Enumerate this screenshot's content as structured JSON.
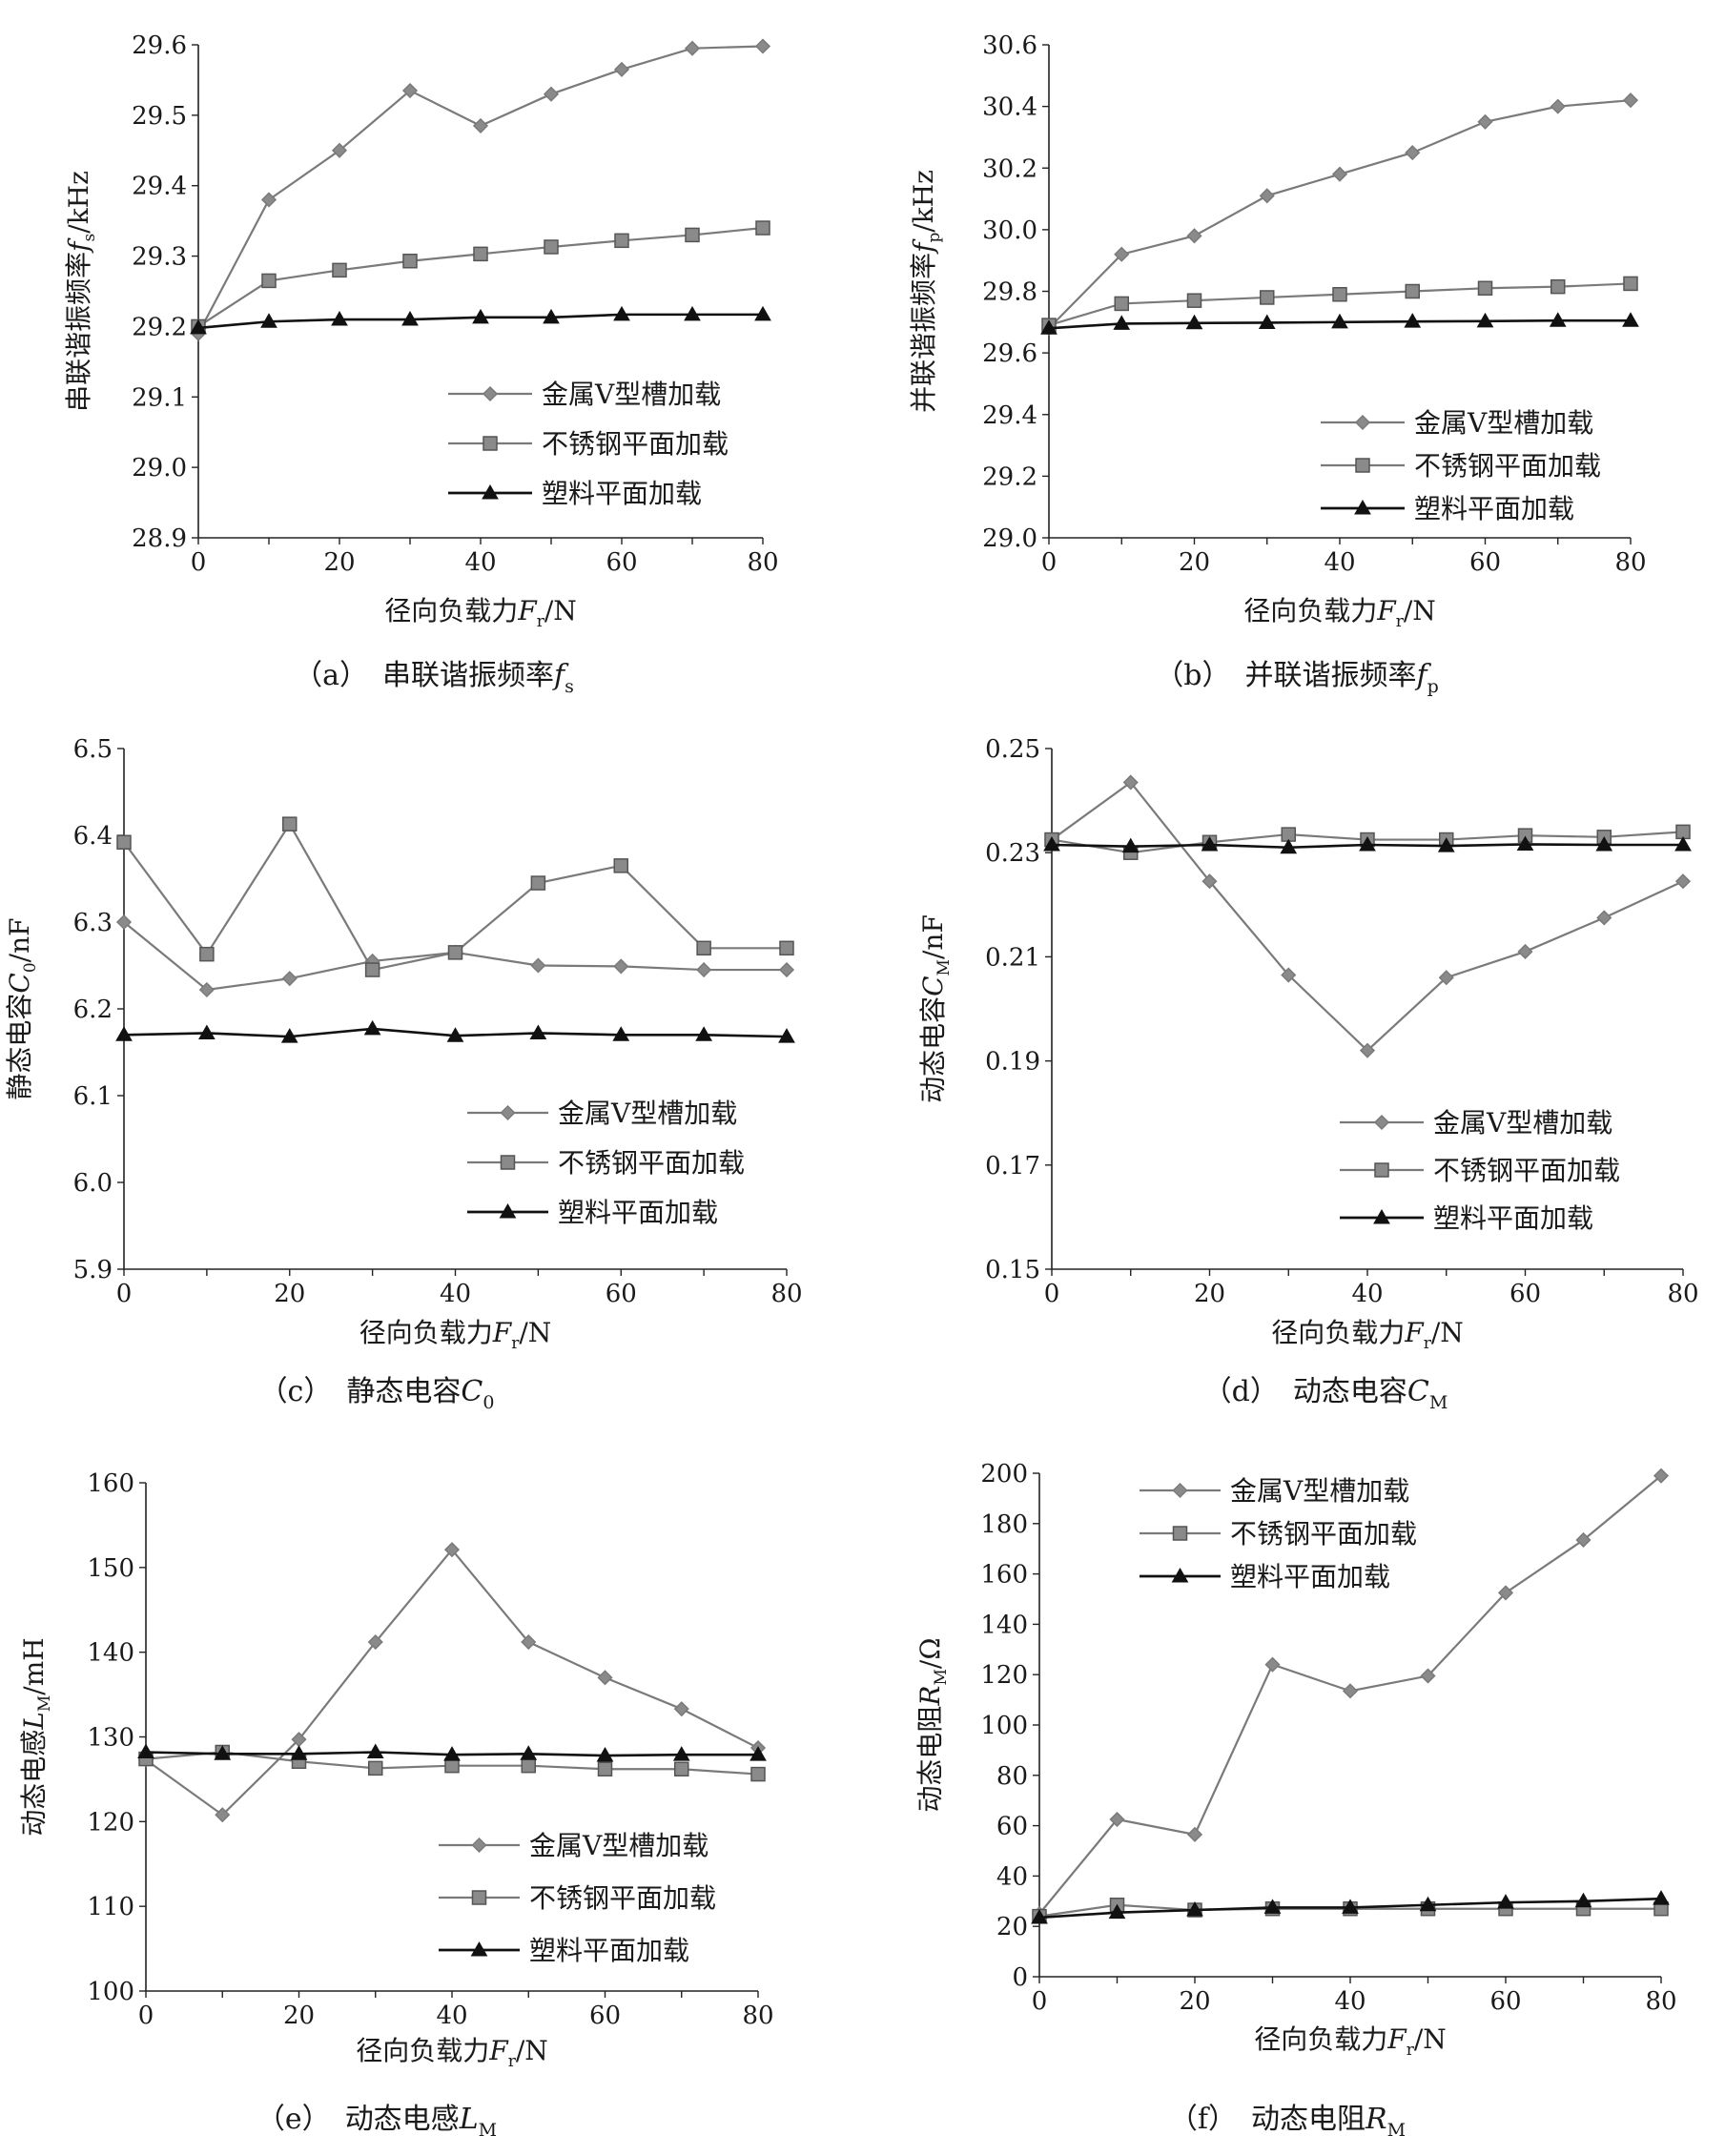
{
  "chart_data": [
    {
      "type": "line",
      "caption": {
        "prefix": "（a）",
        "text": "串联谐振频率",
        "sym": "f",
        "sub": "s"
      },
      "ylabel": {
        "pre": "串联谐振频率",
        "sym": "f",
        "sub": "s",
        "post": "/kHz"
      },
      "xlabel": {
        "pre": "径向负载力",
        "sym": "F",
        "sub": "r",
        "post": "/N"
      },
      "xlim": [
        0,
        80
      ],
      "ylim": [
        28.9,
        29.6
      ],
      "xticks": [
        0,
        20,
        40,
        60,
        80
      ],
      "yticks": [
        "28.9",
        "29.0",
        "29.1",
        "29.2",
        "29.3",
        "29.4",
        "29.5",
        "29.6"
      ],
      "legend_position": "lower-right",
      "series": [
        {
          "name": "金属V型槽加载",
          "marker": "diamond",
          "x": [
            0,
            10,
            20,
            30,
            40,
            50,
            60,
            70,
            80
          ],
          "y": [
            29.19,
            29.38,
            29.45,
            29.535,
            29.485,
            29.53,
            29.565,
            29.595,
            29.598
          ]
        },
        {
          "name": "不锈钢平面加载",
          "marker": "square",
          "x": [
            0,
            10,
            20,
            30,
            40,
            50,
            60,
            70,
            80
          ],
          "y": [
            29.2,
            29.265,
            29.28,
            29.293,
            29.303,
            29.313,
            29.322,
            29.33,
            29.34
          ]
        },
        {
          "name": "塑料平面加载",
          "marker": "triangle",
          "x": [
            0,
            10,
            20,
            30,
            40,
            50,
            60,
            70,
            80
          ],
          "y": [
            29.198,
            29.207,
            29.21,
            29.21,
            29.213,
            29.213,
            29.217,
            29.217,
            29.217
          ]
        }
      ]
    },
    {
      "type": "line",
      "caption": {
        "prefix": "（b）",
        "text": "并联谐振频率",
        "sym": "f",
        "sub": "p"
      },
      "ylabel": {
        "pre": "并联谐振频率",
        "sym": "f",
        "sub": "p",
        "post": "/kHz"
      },
      "xlabel": {
        "pre": "径向负载力",
        "sym": "F",
        "sub": "r",
        "post": "/N"
      },
      "xlim": [
        0,
        80
      ],
      "ylim": [
        29.0,
        30.6
      ],
      "xticks": [
        0,
        20,
        40,
        60,
        80
      ],
      "yticks": [
        "29.0",
        "29.2",
        "29.4",
        "29.6",
        "29.8",
        "30.0",
        "30.2",
        "30.4",
        "30.6"
      ],
      "legend_position": "lower-right",
      "series": [
        {
          "name": "金属V型槽加载",
          "marker": "diamond",
          "x": [
            0,
            10,
            20,
            30,
            40,
            50,
            60,
            70,
            80
          ],
          "y": [
            29.68,
            29.92,
            29.98,
            30.11,
            30.18,
            30.25,
            30.35,
            30.4,
            30.42
          ]
        },
        {
          "name": "不锈钢平面加载",
          "marker": "square",
          "x": [
            0,
            10,
            20,
            30,
            40,
            50,
            60,
            70,
            80
          ],
          "y": [
            29.69,
            29.76,
            29.77,
            29.78,
            29.79,
            29.8,
            29.81,
            29.815,
            29.825
          ]
        },
        {
          "name": "塑料平面加载",
          "marker": "triangle",
          "x": [
            0,
            10,
            20,
            30,
            40,
            50,
            60,
            70,
            80
          ],
          "y": [
            29.68,
            29.695,
            29.697,
            29.698,
            29.7,
            29.702,
            29.703,
            29.705,
            29.705
          ]
        }
      ]
    },
    {
      "type": "line",
      "caption": {
        "prefix": "（c）",
        "text": "静态电容",
        "sym": "C",
        "sub": "0"
      },
      "ylabel": {
        "pre": "静态电容",
        "sym": "C",
        "sub": "0",
        "post": "/nF"
      },
      "xlabel": {
        "pre": "径向负载力",
        "sym": "F",
        "sub": "r",
        "post": "/N"
      },
      "xlim": [
        0,
        80
      ],
      "ylim": [
        5.9,
        6.5
      ],
      "xticks": [
        0,
        20,
        40,
        60,
        80
      ],
      "yticks": [
        "5.9",
        "6.0",
        "6.1",
        "6.2",
        "6.3",
        "6.4",
        "6.5"
      ],
      "legend_position": "lower-right",
      "series": [
        {
          "name": "金属V型槽加载",
          "marker": "diamond",
          "x": [
            0,
            10,
            20,
            30,
            40,
            50,
            60,
            70,
            80
          ],
          "y": [
            6.3,
            6.222,
            6.235,
            6.255,
            6.265,
            6.25,
            6.249,
            6.245,
            6.245
          ]
        },
        {
          "name": "不锈钢平面加载",
          "marker": "square",
          "x": [
            0,
            10,
            20,
            30,
            40,
            50,
            60,
            70,
            80
          ],
          "y": [
            6.392,
            6.263,
            6.413,
            6.245,
            6.265,
            6.345,
            6.365,
            6.27,
            6.27
          ]
        },
        {
          "name": "塑料平面加载",
          "marker": "triangle",
          "x": [
            0,
            10,
            20,
            30,
            40,
            50,
            60,
            70,
            80
          ],
          "y": [
            6.17,
            6.172,
            6.168,
            6.177,
            6.169,
            6.172,
            6.17,
            6.17,
            6.168
          ]
        }
      ]
    },
    {
      "type": "line",
      "caption": {
        "prefix": "（d）",
        "text": "动态电容",
        "sym": "C",
        "sub": "M"
      },
      "ylabel": {
        "pre": "动态电容",
        "sym": "C",
        "sub": "M",
        "post": "/nF"
      },
      "xlabel": {
        "pre": "径向负载力",
        "sym": "F",
        "sub": "r",
        "post": "/N"
      },
      "xlim": [
        0,
        80
      ],
      "ylim": [
        0.15,
        0.25
      ],
      "xticks": [
        0,
        20,
        40,
        60,
        80
      ],
      "yticks": [
        "0.15",
        "0.17",
        "0.19",
        "0.21",
        "0.23",
        "0.25"
      ],
      "legend_position": "lower-right",
      "series": [
        {
          "name": "金属V型槽加载",
          "marker": "diamond",
          "x": [
            0,
            10,
            20,
            30,
            40,
            50,
            60,
            70,
            80
          ],
          "y": [
            0.2325,
            0.2435,
            0.2245,
            0.2065,
            0.192,
            0.206,
            0.211,
            0.2175,
            0.2245
          ]
        },
        {
          "name": "不锈钢平面加载",
          "marker": "square",
          "x": [
            0,
            10,
            20,
            30,
            40,
            50,
            60,
            70,
            80
          ],
          "y": [
            0.2325,
            0.23,
            0.232,
            0.2335,
            0.2325,
            0.2325,
            0.2333,
            0.233,
            0.234
          ]
        },
        {
          "name": "塑料平面加载",
          "marker": "triangle",
          "x": [
            0,
            10,
            20,
            30,
            40,
            50,
            60,
            70,
            80
          ],
          "y": [
            0.2315,
            0.2312,
            0.2315,
            0.231,
            0.2315,
            0.2313,
            0.2316,
            0.2315,
            0.2315
          ]
        }
      ]
    },
    {
      "type": "line",
      "caption": {
        "prefix": "（e）",
        "text": "动态电感",
        "sym": "L",
        "sub": "M"
      },
      "ylabel": {
        "pre": "动态电感",
        "sym": "L",
        "sub": "M",
        "post": "/mH"
      },
      "xlabel": {
        "pre": "径向负载力",
        "sym": "F",
        "sub": "r",
        "post": "/N"
      },
      "xlim": [
        0,
        80
      ],
      "ylim": [
        100,
        160
      ],
      "xticks": [
        0,
        20,
        40,
        60,
        80
      ],
      "yticks": [
        "100",
        "110",
        "120",
        "130",
        "140",
        "150",
        "160"
      ],
      "legend_position": "lower-right",
      "series": [
        {
          "name": "金属V型槽加载",
          "marker": "diamond",
          "x": [
            0,
            10,
            20,
            30,
            40,
            50,
            60,
            70,
            80
          ],
          "y": [
            127.3,
            120.8,
            129.7,
            141.2,
            152.1,
            141.2,
            137.0,
            133.3,
            128.7
          ]
        },
        {
          "name": "不锈钢平面加载",
          "marker": "square",
          "x": [
            0,
            10,
            20,
            30,
            40,
            50,
            60,
            70,
            80
          ],
          "y": [
            127.4,
            128.2,
            127.1,
            126.3,
            126.6,
            126.6,
            126.2,
            126.2,
            125.6
          ]
        },
        {
          "name": "塑料平面加载",
          "marker": "triangle",
          "x": [
            0,
            10,
            20,
            30,
            40,
            50,
            60,
            70,
            80
          ],
          "y": [
            128.2,
            128.0,
            128.0,
            128.2,
            127.9,
            128.0,
            127.8,
            127.9,
            127.9
          ]
        }
      ]
    },
    {
      "type": "line",
      "caption": {
        "prefix": "（f）",
        "text": "动态电阻",
        "sym": "R",
        "sub": "M"
      },
      "ylabel": {
        "pre": "动态电阻",
        "sym": "R",
        "sub": "M",
        "post": "/Ω"
      },
      "xlabel": {
        "pre": "径向负载力",
        "sym": "F",
        "sub": "r",
        "post": "/N"
      },
      "xlim": [
        0,
        80
      ],
      "ylim": [
        0,
        200
      ],
      "xticks": [
        0,
        20,
        40,
        60,
        80
      ],
      "yticks": [
        "0",
        "20",
        "40",
        "60",
        "80",
        "100",
        "120",
        "140",
        "160",
        "180",
        "200"
      ],
      "legend_position": "upper-left",
      "series": [
        {
          "name": "金属V型槽加载",
          "marker": "diamond",
          "x": [
            0,
            10,
            20,
            30,
            40,
            50,
            60,
            70,
            80
          ],
          "y": [
            25,
            62.5,
            56.5,
            124,
            113.5,
            119.5,
            152.5,
            173.5,
            199
          ]
        },
        {
          "name": "不锈钢平面加载",
          "marker": "square",
          "x": [
            0,
            10,
            20,
            30,
            40,
            50,
            60,
            70,
            80
          ],
          "y": [
            24,
            28.5,
            26.5,
            27,
            27,
            27,
            27,
            27,
            27
          ]
        },
        {
          "name": "塑料平面加载",
          "marker": "triangle",
          "x": [
            0,
            10,
            20,
            30,
            40,
            50,
            60,
            70,
            80
          ],
          "y": [
            23.5,
            25.5,
            26.5,
            27.5,
            27.5,
            28.5,
            29.5,
            30,
            31
          ]
        }
      ]
    }
  ],
  "colors": {
    "series": [
      "#7a7a7a",
      "#7a7a7a",
      "#111111"
    ],
    "axis": "#222222"
  }
}
